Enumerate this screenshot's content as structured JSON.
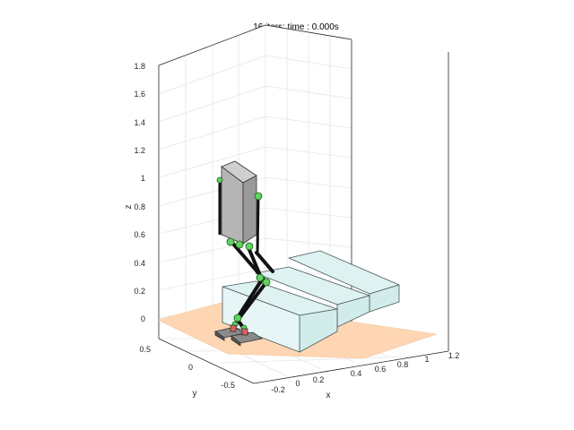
{
  "figure": {
    "title": "16 iters: time :   0.000s",
    "axes": {
      "x": {
        "label": "x",
        "ticks": [
          "-0.2",
          "0",
          "0.2",
          "0.4",
          "0.6",
          "0.8",
          "1",
          "1.2"
        ]
      },
      "y": {
        "label": "y",
        "ticks": [
          "0.5",
          "0",
          "-0.5"
        ]
      },
      "z": {
        "label": "z",
        "ticks": [
          "0",
          "0.2",
          "0.4",
          "0.6",
          "0.8",
          "1",
          "1.2",
          "1.4",
          "1.6",
          "1.8"
        ]
      }
    },
    "colors": {
      "ground": "#ffd6b3",
      "stairs": "#dff2f2",
      "stairs_edge": "#4a5a5a",
      "torso": "#b5b5b5",
      "links": "#111111",
      "joints": "#5fd35f",
      "feet": "#555555"
    }
  }
}
